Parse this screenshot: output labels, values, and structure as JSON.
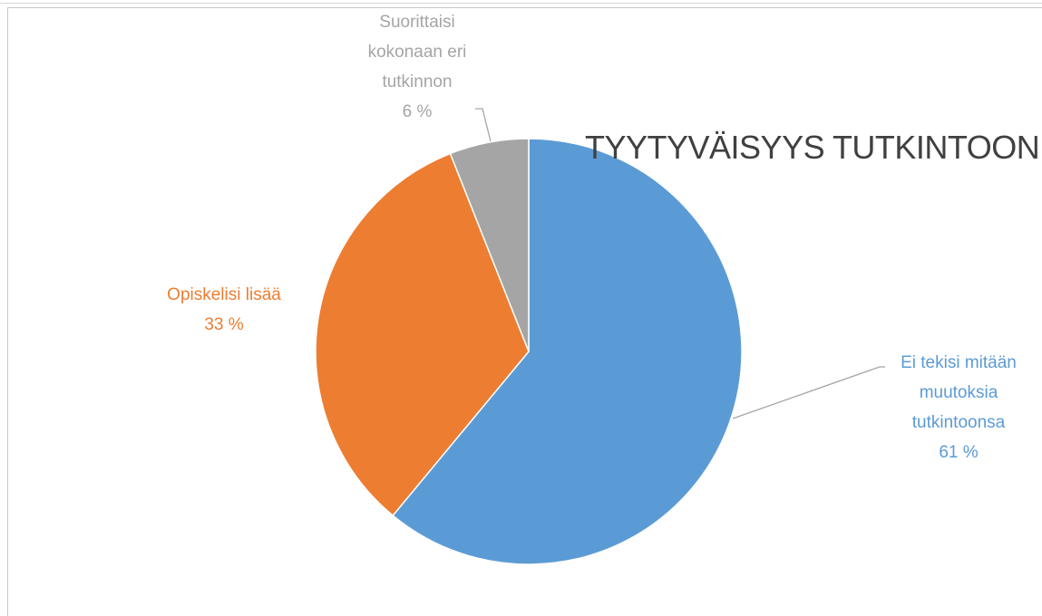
{
  "chart_data": {
    "type": "pie",
    "title": "TYYTYVÄISYYS TUTKINTOON",
    "categories": [
      "Ei tekisi mitään muutoksia tutkintoonsa",
      "Opiskelisi lisää",
      "Suorittaisi kokonaan eri tutkinnon"
    ],
    "values": [
      61,
      33,
      6
    ],
    "value_labels": [
      "61 %",
      "33 %",
      "6 %"
    ],
    "colors": [
      "#5b9bd5",
      "#ed7d31",
      "#a5a5a5"
    ]
  }
}
